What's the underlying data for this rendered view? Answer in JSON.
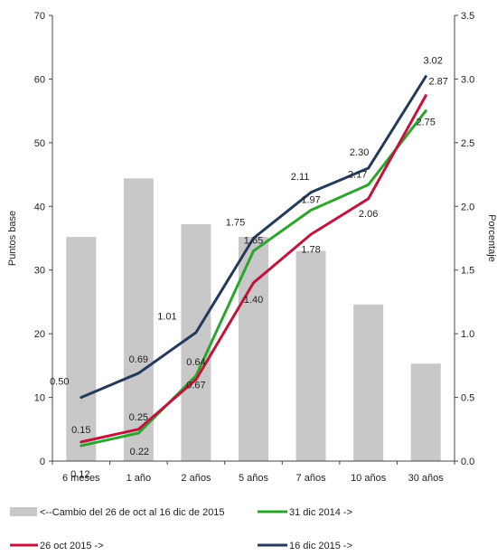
{
  "chart_data": {
    "type": "bar+line",
    "title": "",
    "categories": [
      "6 meses",
      "1 año",
      "2 años",
      "5 años",
      "7 años",
      "10 años",
      "30 años"
    ],
    "bars": {
      "name": "<--Cambio del 26 de oct al 16 dic de 2015",
      "axis": "left",
      "color": "#c8c8c8",
      "values": [
        35.2,
        44.4,
        37.2,
        35.2,
        33.0,
        24.6,
        15.3
      ]
    },
    "series": [
      {
        "name": "31 dic 2014 ->",
        "axis": "right",
        "color": "#2ca52c",
        "values": [
          0.12,
          0.22,
          0.67,
          1.65,
          1.97,
          2.17,
          2.75
        ],
        "labels": [
          "",
          "",
          "0.67",
          "1.65",
          "1.97",
          "2.17",
          "2.75"
        ]
      },
      {
        "name": "26 oct 2015 ->",
        "axis": "right",
        "color": "#c0143c",
        "values": [
          0.15,
          0.25,
          0.64,
          1.4,
          1.78,
          2.06,
          2.87
        ],
        "labels": [
          "0.15",
          "0.25",
          "0.64",
          "1.40",
          "1.78",
          "2.06",
          "2.87"
        ]
      },
      {
        "name": "16 dic 2015 ->",
        "axis": "right",
        "color": "#243a5a",
        "values": [
          0.5,
          0.69,
          1.01,
          1.75,
          2.11,
          2.3,
          3.02
        ],
        "labels": [
          "0.50",
          "0.69",
          "1.01",
          "1.75",
          "2.11",
          "2.30",
          "3.02"
        ]
      }
    ],
    "extra_labels": [
      "0.12",
      "0.22"
    ],
    "ylabel_left": "Puntos base",
    "ylabel_right": "Porcentaje",
    "ylim_left": [
      0,
      70
    ],
    "ylim_right": [
      0,
      3.5
    ],
    "yticks_left": [
      "0",
      "10",
      "20",
      "30",
      "40",
      "50",
      "60",
      "70"
    ],
    "yticks_right": [
      "0.0",
      "0.5",
      "1.0",
      "1.5",
      "2.0",
      "2.5",
      "3.0",
      "3.5"
    ],
    "grid": false,
    "legend_position": "bottom"
  }
}
